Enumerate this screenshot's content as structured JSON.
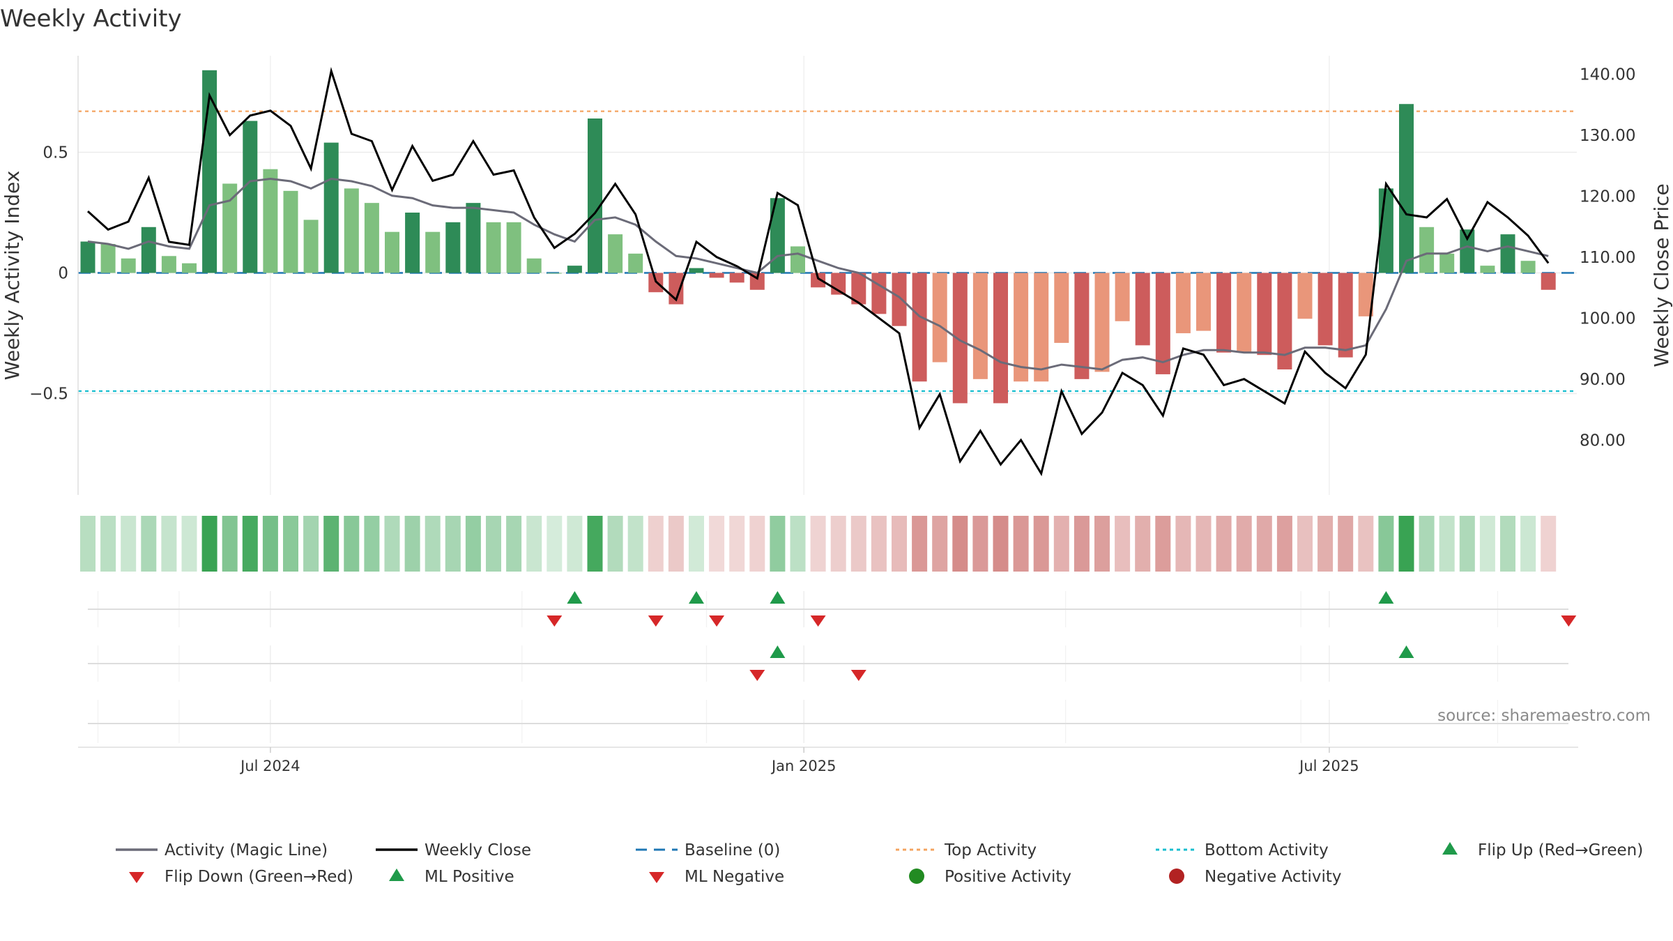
{
  "title": "Weekly Activity",
  "source": "source: sharemaestro.com",
  "colors": {
    "bar_pos_strong": "#2e8b57",
    "bar_pos_light": "#7fc07f",
    "bar_neg_strong": "#cd5c5c",
    "bar_neg_light": "#e9967a",
    "magic_line": "#6b6b78",
    "close_line": "#000000",
    "baseline": "#1f77b4",
    "top_line": "#f4a460",
    "bottom_line": "#17becf",
    "flip_up": "#1f9a4a",
    "flip_down": "#d62728",
    "pos_dot": "#228b22",
    "neg_dot": "#b22222"
  },
  "chart_data": {
    "type": "bar",
    "title": "Weekly Activity",
    "ylabel_left": "Weekly Activity Index",
    "ylabel_right": "Weekly Close Price",
    "ylim_left": [
      -0.92,
      0.9
    ],
    "ylim_right": [
      71,
      143
    ],
    "yticks_left": [
      {
        "value": 0.5,
        "label": "0.5"
      },
      {
        "value": 0,
        "label": "0"
      },
      {
        "value": -0.5,
        "label": "−0.5"
      }
    ],
    "yticks_right": [
      {
        "value": 140,
        "label": "140.00"
      },
      {
        "value": 130,
        "label": "130.00"
      },
      {
        "value": 120,
        "label": "120.00"
      },
      {
        "value": 110,
        "label": "110.00"
      },
      {
        "value": 100,
        "label": "100.00"
      },
      {
        "value": 90,
        "label": "90.00"
      },
      {
        "value": 80,
        "label": "80.00"
      }
    ],
    "xticks": [
      {
        "index": 9,
        "label": "Jul 2024"
      },
      {
        "index": 35.3,
        "label": "Jan 2025"
      },
      {
        "index": 61.2,
        "label": "Jul 2025"
      }
    ],
    "grid": true,
    "baseline": 0,
    "top_activity": 0.67,
    "bottom_activity": -0.49,
    "activity": [
      0.13,
      0.12,
      0.06,
      0.19,
      0.07,
      0.04,
      0.84,
      0.37,
      0.63,
      0.43,
      0.34,
      0.22,
      0.54,
      0.35,
      0.29,
      0.17,
      0.25,
      0.17,
      0.21,
      0.29,
      0.21,
      0.21,
      0.06,
      0.0,
      0.03,
      0.64,
      0.16,
      0.08,
      -0.08,
      -0.13,
      0.02,
      -0.02,
      -0.04,
      -0.07,
      0.31,
      0.11,
      -0.06,
      -0.09,
      -0.13,
      -0.17,
      -0.22,
      -0.45,
      -0.37,
      -0.54,
      -0.44,
      -0.54,
      -0.45,
      -0.45,
      -0.29,
      -0.44,
      -0.41,
      -0.2,
      -0.3,
      -0.42,
      -0.25,
      -0.24,
      -0.33,
      -0.33,
      -0.34,
      -0.4,
      -0.19,
      -0.3,
      -0.35,
      -0.18,
      0.35,
      0.7,
      0.19,
      0.08,
      0.18,
      0.03,
      0.16,
      0.05,
      -0.07
    ],
    "strength": [
      2,
      1,
      1,
      2,
      1,
      1,
      2,
      1,
      2,
      1,
      1,
      1,
      2,
      1,
      1,
      1,
      2,
      1,
      2,
      2,
      1,
      1,
      1,
      1,
      2,
      2,
      1,
      1,
      2,
      2,
      2,
      2,
      2,
      2,
      2,
      1,
      2,
      2,
      2,
      2,
      2,
      2,
      1,
      2,
      1,
      2,
      1,
      1,
      1,
      2,
      1,
      1,
      2,
      2,
      1,
      1,
      2,
      1,
      2,
      2,
      1,
      2,
      2,
      1,
      2,
      2,
      1,
      1,
      2,
      1,
      2,
      1,
      2
    ],
    "magic_line": [
      0.13,
      0.12,
      0.1,
      0.13,
      0.11,
      0.1,
      0.28,
      0.3,
      0.38,
      0.39,
      0.38,
      0.35,
      0.39,
      0.38,
      0.36,
      0.32,
      0.31,
      0.28,
      0.27,
      0.27,
      0.26,
      0.25,
      0.2,
      0.16,
      0.13,
      0.22,
      0.23,
      0.2,
      0.13,
      0.07,
      0.06,
      0.04,
      0.02,
      0.0,
      0.07,
      0.08,
      0.05,
      0.02,
      0.0,
      -0.05,
      -0.1,
      -0.18,
      -0.22,
      -0.28,
      -0.32,
      -0.37,
      -0.39,
      -0.4,
      -0.38,
      -0.39,
      -0.4,
      -0.36,
      -0.35,
      -0.37,
      -0.34,
      -0.32,
      -0.32,
      -0.33,
      -0.33,
      -0.34,
      -0.31,
      -0.31,
      -0.32,
      -0.3,
      -0.15,
      0.05,
      0.08,
      0.08,
      0.11,
      0.09,
      0.11,
      0.09,
      0.07
    ],
    "weekly_close": [
      117.5,
      114.5,
      115.8,
      123.0,
      112.5,
      112.0,
      136.5,
      130.0,
      133.2,
      134.0,
      131.5,
      124.5,
      140.5,
      130.2,
      129.0,
      121.0,
      128.2,
      122.5,
      123.5,
      129.0,
      123.5,
      124.2,
      116.5,
      111.5,
      113.8,
      117.2,
      122.0,
      117.0,
      106.0,
      103.0,
      112.5,
      110.0,
      108.5,
      106.5,
      120.5,
      118.5,
      106.5,
      104.5,
      102.5,
      100.0,
      97.5,
      82.0,
      87.5,
      76.5,
      81.5,
      76.0,
      80.0,
      74.5,
      88.0,
      81.0,
      84.5,
      91.0,
      89.0,
      84.0,
      95.0,
      94.0,
      89.0,
      90.0,
      88.0,
      86.0,
      94.5,
      91.0,
      88.5,
      94.0,
      122.0,
      117.0,
      116.5,
      119.5,
      113.0,
      119.0,
      116.5,
      113.5,
      109.0
    ],
    "flip_signals": [
      {
        "index": 23,
        "dir": "down"
      },
      {
        "index": 24,
        "dir": "up"
      },
      {
        "index": 28,
        "dir": "down"
      },
      {
        "index": 30,
        "dir": "up"
      },
      {
        "index": 31,
        "dir": "down"
      },
      {
        "index": 34,
        "dir": "up"
      },
      {
        "index": 36,
        "dir": "down"
      },
      {
        "index": 64,
        "dir": "up"
      },
      {
        "index": 73,
        "dir": "down"
      }
    ],
    "ml_signals": [
      {
        "index": 33,
        "dir": "down"
      },
      {
        "index": 34,
        "dir": "up"
      },
      {
        "index": 38,
        "dir": "down"
      },
      {
        "index": 65,
        "dir": "up"
      }
    ],
    "legend": [
      {
        "label": "Activity (Magic Line)",
        "kind": "line",
        "color": "#6b6b78"
      },
      {
        "label": "Weekly Close",
        "kind": "line",
        "color": "#000000"
      },
      {
        "label": "Baseline (0)",
        "kind": "dashed",
        "color": "#1f77b4"
      },
      {
        "label": "Top Activity",
        "kind": "dotted",
        "color": "#f4a460"
      },
      {
        "label": "Bottom Activity",
        "kind": "dotted",
        "color": "#17becf"
      },
      {
        "label": "Flip Up (Red→Green)",
        "kind": "tri-up",
        "color": "#1f9a4a"
      },
      {
        "label": "Flip Down (Green→Red)",
        "kind": "tri-down",
        "color": "#d62728"
      },
      {
        "label": "ML Positive",
        "kind": "tri-up",
        "color": "#1f9a4a"
      },
      {
        "label": "ML Negative",
        "kind": "tri-down",
        "color": "#d62728"
      },
      {
        "label": "Positive Activity",
        "kind": "dot",
        "color": "#228b22"
      },
      {
        "label": "Negative Activity",
        "kind": "dot",
        "color": "#b22222"
      }
    ],
    "legend_placement": "bottom"
  }
}
